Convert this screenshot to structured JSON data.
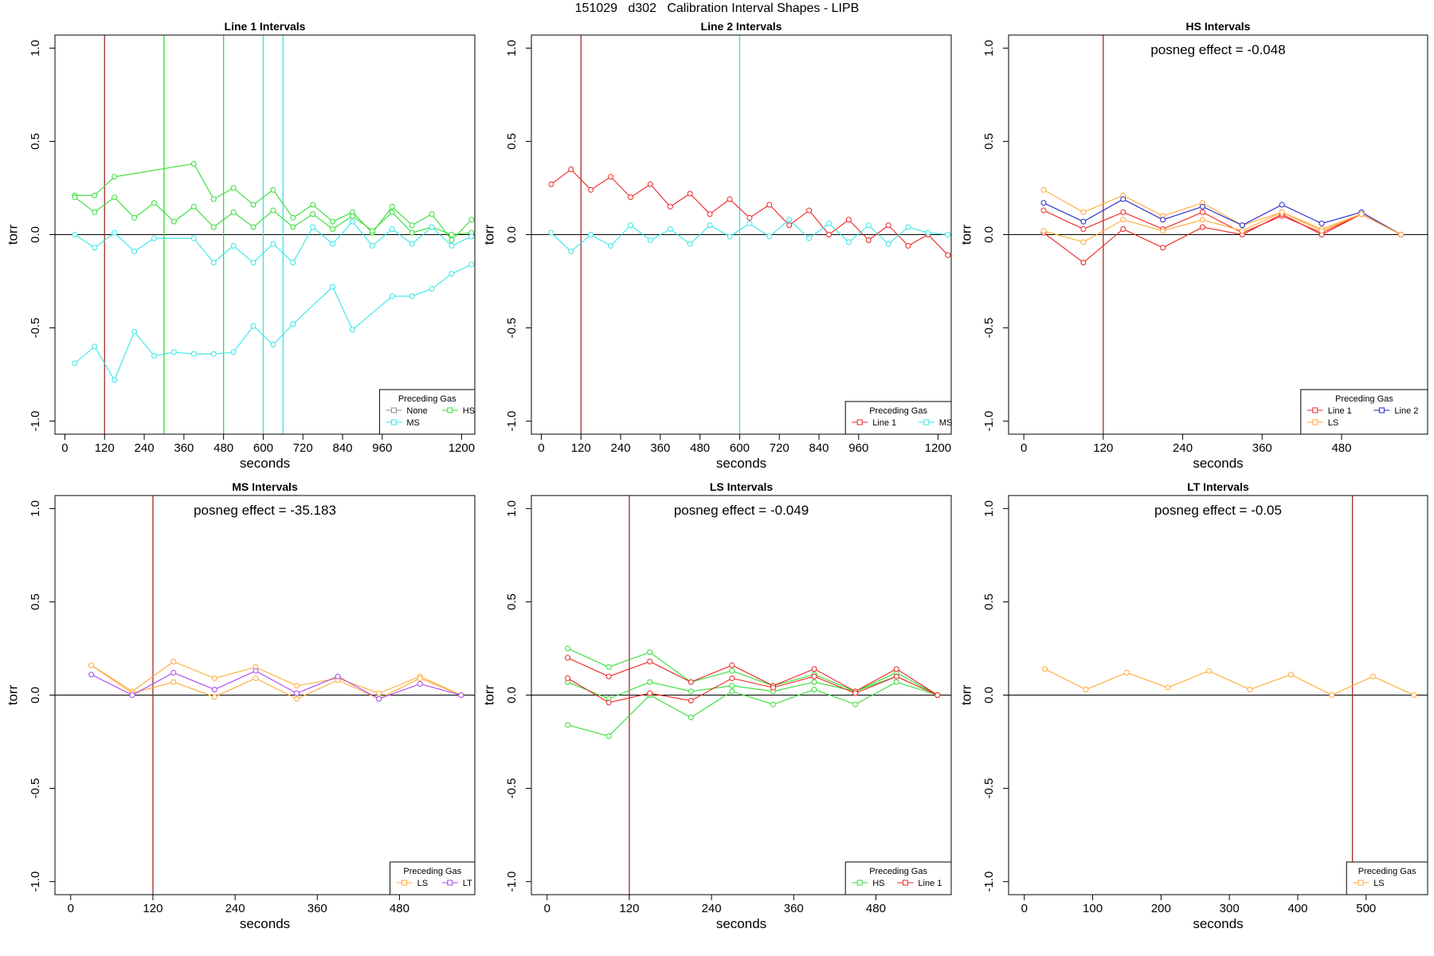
{
  "suptitle": "151029   d302   Calibration Interval Shapes - LIPB",
  "colors": {
    "None": "#888888",
    "HS": "#33dd33",
    "MS": "#33e6e6",
    "Line 1": "#ee2222",
    "Line 2": "#2222cc",
    "LS": "#ffaa33",
    "LT": "#aa44ee",
    "brown_vline": "#a52a2a",
    "axis": "#000000"
  },
  "chart_data": [
    {
      "type": "line",
      "title": "Line 1 Intervals",
      "xlabel": "seconds",
      "ylabel": "torr",
      "xlim": [
        -30,
        1240
      ],
      "ylim": [
        -1.07,
        1.07
      ],
      "xticks": [
        0,
        120,
        240,
        360,
        480,
        600,
        720,
        840,
        960,
        1200
      ],
      "yticks": [
        -1.0,
        -0.5,
        0.0,
        0.5,
        1.0
      ],
      "yticklabels": [
        "-1.0",
        "-0.5",
        "0.0",
        "0.5",
        "1.0"
      ],
      "hline": 0,
      "vlines": [
        {
          "x": 120,
          "color": "brown_vline"
        },
        {
          "x": 300,
          "color": "HS"
        },
        {
          "x": 480,
          "color": "HS"
        },
        {
          "x": 600,
          "color": "MS"
        },
        {
          "x": 660,
          "color": "MS"
        }
      ],
      "series": [
        {
          "color": "HS",
          "x": [
            30,
            90,
            150,
            390,
            450,
            510,
            570,
            630,
            690,
            750,
            810,
            870,
            930,
            990,
            1050,
            1110,
            1170,
            1230
          ],
          "y": [
            0.21,
            0.21,
            0.31,
            0.38,
            0.19,
            0.25,
            0.16,
            0.24,
            0.09,
            0.16,
            0.07,
            0.12,
            0.01,
            0.15,
            0.05,
            0.11,
            -0.03,
            0.08
          ]
        },
        {
          "color": "HS",
          "x": [
            30,
            90,
            150,
            210,
            270,
            330,
            390,
            450,
            510,
            570,
            630,
            690,
            750,
            810,
            870,
            930,
            990,
            1050,
            1110,
            1170,
            1230
          ],
          "y": [
            0.2,
            0.12,
            0.2,
            0.09,
            0.17,
            0.07,
            0.15,
            0.04,
            0.12,
            0.04,
            0.13,
            0.04,
            0.11,
            0.03,
            0.1,
            0.02,
            0.12,
            0.01,
            0.04,
            0.0,
            0.01
          ]
        },
        {
          "color": "MS",
          "x": [
            30,
            90,
            150,
            210,
            270,
            390,
            450,
            510,
            570,
            630,
            690,
            750,
            810,
            870,
            930,
            990,
            1050,
            1110,
            1170,
            1230
          ],
          "y": [
            0.0,
            -0.07,
            0.01,
            -0.09,
            -0.02,
            -0.02,
            -0.15,
            -0.06,
            -0.15,
            -0.05,
            -0.15,
            0.04,
            -0.05,
            0.07,
            -0.06,
            0.03,
            -0.05,
            0.04,
            -0.06,
            -0.01
          ]
        },
        {
          "color": "MS",
          "x": [
            30,
            90,
            150,
            210,
            270,
            330,
            390,
            450,
            510,
            570,
            630,
            690,
            810,
            870,
            990,
            1050,
            1110,
            1170,
            1230
          ],
          "y": [
            -0.69,
            -0.6,
            -0.78,
            -0.52,
            -0.65,
            -0.63,
            -0.64,
            -0.64,
            -0.63,
            -0.49,
            -0.59,
            -0.48,
            -0.28,
            -0.51,
            -0.33,
            -0.33,
            -0.29,
            -0.21,
            -0.16
          ]
        }
      ],
      "legend": {
        "title": "Preceding Gas",
        "placement": "bottom-right",
        "rows": [
          [
            {
              "label": "None",
              "color": "None"
            },
            {
              "label": "HS",
              "color": "HS"
            }
          ],
          [
            {
              "label": "MS",
              "color": "MS"
            }
          ]
        ]
      }
    },
    {
      "type": "line",
      "title": "Line 2 Intervals",
      "xlabel": "seconds",
      "ylabel": "torr",
      "xlim": [
        -30,
        1240
      ],
      "ylim": [
        -1.07,
        1.07
      ],
      "xticks": [
        0,
        120,
        240,
        360,
        480,
        600,
        720,
        840,
        960,
        1200
      ],
      "yticks": [
        -1.0,
        -0.5,
        0.0,
        0.5,
        1.0
      ],
      "yticklabels": [
        "-1.0",
        "-0.5",
        "0.0",
        "0.5",
        "1.0"
      ],
      "hline": 0,
      "vlines": [
        {
          "x": 120,
          "color": "brown_vline"
        },
        {
          "x": 600,
          "color": "MS"
        }
      ],
      "series": [
        {
          "color": "Line 1",
          "x": [
            30,
            90,
            150,
            210,
            270,
            330,
            390,
            450,
            510,
            570,
            630,
            690,
            750,
            810,
            870,
            930,
            990,
            1050,
            1110,
            1170,
            1230
          ],
          "y": [
            0.27,
            0.35,
            0.24,
            0.31,
            0.2,
            0.27,
            0.15,
            0.22,
            0.11,
            0.19,
            0.09,
            0.16,
            0.05,
            0.13,
            0.0,
            0.08,
            -0.03,
            0.05,
            -0.06,
            0.0,
            -0.11
          ]
        },
        {
          "color": "MS",
          "x": [
            30,
            90,
            150,
            210,
            270,
            330,
            390,
            450,
            510,
            570,
            630,
            690,
            750,
            810,
            870,
            930,
            990,
            1050,
            1110,
            1170,
            1230
          ],
          "y": [
            0.01,
            -0.09,
            0.0,
            -0.06,
            0.05,
            -0.03,
            0.03,
            -0.05,
            0.05,
            -0.01,
            0.06,
            -0.01,
            0.08,
            -0.02,
            0.06,
            -0.04,
            0.05,
            -0.05,
            0.04,
            0.01,
            0.0
          ]
        }
      ],
      "legend": {
        "title": "Preceding Gas",
        "placement": "bottom-right",
        "rows": [
          [
            {
              "label": "Line 1",
              "color": "Line 1"
            },
            {
              "label": "MS",
              "color": "MS"
            }
          ]
        ]
      }
    },
    {
      "type": "line",
      "title": "HS Intervals",
      "xlabel": "seconds",
      "ylabel": "torr",
      "xlim": [
        -23,
        610
      ],
      "ylim": [
        -1.07,
        1.07
      ],
      "xticks": [
        0,
        120,
        240,
        360,
        480
      ],
      "yticks": [
        -1.0,
        -0.5,
        0.0,
        0.5,
        1.0
      ],
      "yticklabels": [
        "-1.0",
        "-0.5",
        "0.0",
        "0.5",
        "1.0"
      ],
      "hline": 0,
      "vlines": [
        {
          "x": 120,
          "color": "brown_vline"
        }
      ],
      "annotation": "posneg effect = -0.048",
      "series": [
        {
          "color": "LS",
          "x": [
            30,
            90,
            150,
            210,
            270,
            330,
            390,
            450,
            510,
            570
          ],
          "y": [
            0.24,
            0.12,
            0.21,
            0.1,
            0.17,
            0.05,
            0.12,
            0.03,
            0.11,
            0.0
          ]
        },
        {
          "color": "Line 2",
          "x": [
            30,
            90,
            150,
            210,
            270,
            330,
            390,
            450,
            510,
            570
          ],
          "y": [
            0.17,
            0.07,
            0.19,
            0.08,
            0.15,
            0.05,
            0.16,
            0.06,
            0.12,
            0.0
          ]
        },
        {
          "color": "Line 1",
          "x": [
            30,
            90,
            150,
            210,
            270,
            330,
            390,
            450,
            510,
            570
          ],
          "y": [
            0.13,
            0.03,
            0.12,
            0.03,
            0.12,
            0.01,
            0.1,
            0.01,
            0.11,
            0.0
          ]
        },
        {
          "color": "Line 1",
          "x": [
            30,
            90,
            150,
            210,
            270,
            330,
            390,
            450,
            510,
            570
          ],
          "y": [
            0.01,
            -0.15,
            0.03,
            -0.07,
            0.04,
            0.0,
            0.11,
            0.0,
            0.11,
            0.0
          ]
        },
        {
          "color": "LS",
          "x": [
            30,
            90,
            150,
            210,
            270,
            330,
            390,
            450,
            510,
            570
          ],
          "y": [
            0.02,
            -0.04,
            0.08,
            0.02,
            0.08,
            0.02,
            0.12,
            0.02,
            0.11,
            0.0
          ]
        }
      ],
      "legend": {
        "title": "Preceding Gas",
        "placement": "bottom-right",
        "rows": [
          [
            {
              "label": "Line 1",
              "color": "Line 1"
            },
            {
              "label": "Line 2",
              "color": "Line 2"
            }
          ],
          [
            {
              "label": "LS",
              "color": "LS"
            }
          ]
        ]
      }
    },
    {
      "type": "line",
      "title": "MS Intervals",
      "xlabel": "seconds",
      "ylabel": "torr",
      "xlim": [
        -23,
        590
      ],
      "ylim": [
        -1.07,
        1.07
      ],
      "xticks": [
        0,
        120,
        240,
        360,
        480
      ],
      "yticks": [
        -1.0,
        -0.5,
        0.0,
        0.5,
        1.0
      ],
      "yticklabels": [
        "-1.0",
        "-0.5",
        "0.0",
        "0.5",
        "1.0"
      ],
      "hline": 0,
      "vlines": [
        {
          "x": 120,
          "color": "brown_vline"
        }
      ],
      "annotation": "posneg effect = -35.183",
      "series": [
        {
          "color": "LS",
          "x": [
            30,
            90,
            150,
            210,
            270,
            330,
            390,
            450,
            510,
            570
          ],
          "y": [
            0.16,
            0.02,
            0.18,
            0.09,
            0.15,
            0.05,
            0.09,
            0.01,
            0.1,
            0.0
          ]
        },
        {
          "color": "LS",
          "x": [
            30,
            90,
            150,
            210,
            270,
            330,
            390,
            450,
            510,
            570
          ],
          "y": [
            0.16,
            0.01,
            0.07,
            -0.01,
            0.09,
            -0.02,
            0.08,
            -0.02,
            0.09,
            0.0
          ]
        },
        {
          "color": "LT",
          "x": [
            30,
            90,
            150,
            210,
            270,
            330,
            390,
            450,
            510,
            570
          ],
          "y": [
            0.11,
            0.0,
            0.12,
            0.03,
            0.13,
            0.01,
            0.1,
            -0.02,
            0.06,
            0.0
          ]
        }
      ],
      "legend": {
        "title": "Preceding Gas",
        "placement": "bottom-right",
        "rows": [
          [
            {
              "label": "LS",
              "color": "LS"
            },
            {
              "label": "LT",
              "color": "LT"
            }
          ]
        ]
      }
    },
    {
      "type": "line",
      "title": "LS Intervals",
      "xlabel": "seconds",
      "ylabel": "torr",
      "xlim": [
        -23,
        590
      ],
      "ylim": [
        -1.07,
        1.07
      ],
      "xticks": [
        0,
        120,
        240,
        360,
        480
      ],
      "yticks": [
        -1.0,
        -0.5,
        0.0,
        0.5,
        1.0
      ],
      "yticklabels": [
        "-1.0",
        "-0.5",
        "0.0",
        "0.5",
        "1.0"
      ],
      "hline": 0,
      "vlines": [
        {
          "x": 120,
          "color": "brown_vline"
        }
      ],
      "annotation": "posneg effect = -0.049",
      "series": [
        {
          "color": "HS",
          "x": [
            30,
            90,
            150,
            210,
            270,
            330,
            390,
            450,
            510,
            570
          ],
          "y": [
            0.25,
            0.15,
            0.23,
            0.07,
            0.13,
            0.05,
            0.11,
            0.02,
            0.12,
            0.0
          ]
        },
        {
          "color": "HS",
          "x": [
            30,
            90,
            150,
            210,
            270,
            330,
            390,
            450,
            510,
            570
          ],
          "y": [
            0.07,
            -0.02,
            0.07,
            0.02,
            0.05,
            0.02,
            0.07,
            0.02,
            0.1,
            0.0
          ]
        },
        {
          "color": "HS",
          "x": [
            30,
            90,
            150,
            210,
            270,
            330,
            390,
            450,
            510,
            570
          ],
          "y": [
            -0.16,
            -0.22,
            0.0,
            -0.12,
            0.02,
            -0.05,
            0.03,
            -0.05,
            0.07,
            0.0
          ]
        },
        {
          "color": "Line 1",
          "x": [
            30,
            90,
            150,
            210,
            270,
            330,
            390,
            450,
            510,
            570
          ],
          "y": [
            0.2,
            0.1,
            0.18,
            0.07,
            0.16,
            0.05,
            0.14,
            0.02,
            0.14,
            0.0
          ]
        },
        {
          "color": "Line 1",
          "x": [
            30,
            90,
            150,
            210,
            270,
            330,
            390,
            450,
            510,
            570
          ],
          "y": [
            0.09,
            -0.04,
            0.01,
            -0.03,
            0.09,
            0.04,
            0.1,
            0.01,
            0.1,
            0.0
          ]
        }
      ],
      "legend": {
        "title": "Preceding Gas",
        "placement": "bottom-right",
        "rows": [
          [
            {
              "label": "HS",
              "color": "HS"
            },
            {
              "label": "Line 1",
              "color": "Line 1"
            }
          ]
        ]
      }
    },
    {
      "type": "line",
      "title": "LT Intervals",
      "xlabel": "seconds",
      "ylabel": "torr",
      "xlim": [
        -23,
        590
      ],
      "ylim": [
        -1.07,
        1.07
      ],
      "xticks": [
        0,
        100,
        200,
        300,
        400,
        500
      ],
      "yticks": [
        -1.0,
        -0.5,
        0.0,
        0.5,
        1.0
      ],
      "yticklabels": [
        "-1.0",
        "-0.5",
        "0.0",
        "0.5",
        "1.0"
      ],
      "hline": 0,
      "vlines": [
        {
          "x": 480,
          "color": "brown_vline"
        }
      ],
      "annotation": "posneg effect = -0.05",
      "series": [
        {
          "color": "LS",
          "x": [
            30,
            90,
            150,
            210,
            270,
            330,
            390,
            450,
            510,
            570
          ],
          "y": [
            0.14,
            0.03,
            0.12,
            0.04,
            0.13,
            0.03,
            0.11,
            0.0,
            0.1,
            0.0
          ]
        }
      ],
      "legend": {
        "title": "Preceding Gas",
        "placement": "bottom-right",
        "rows": [
          [
            {
              "label": "LS",
              "color": "LS"
            }
          ]
        ]
      }
    }
  ]
}
